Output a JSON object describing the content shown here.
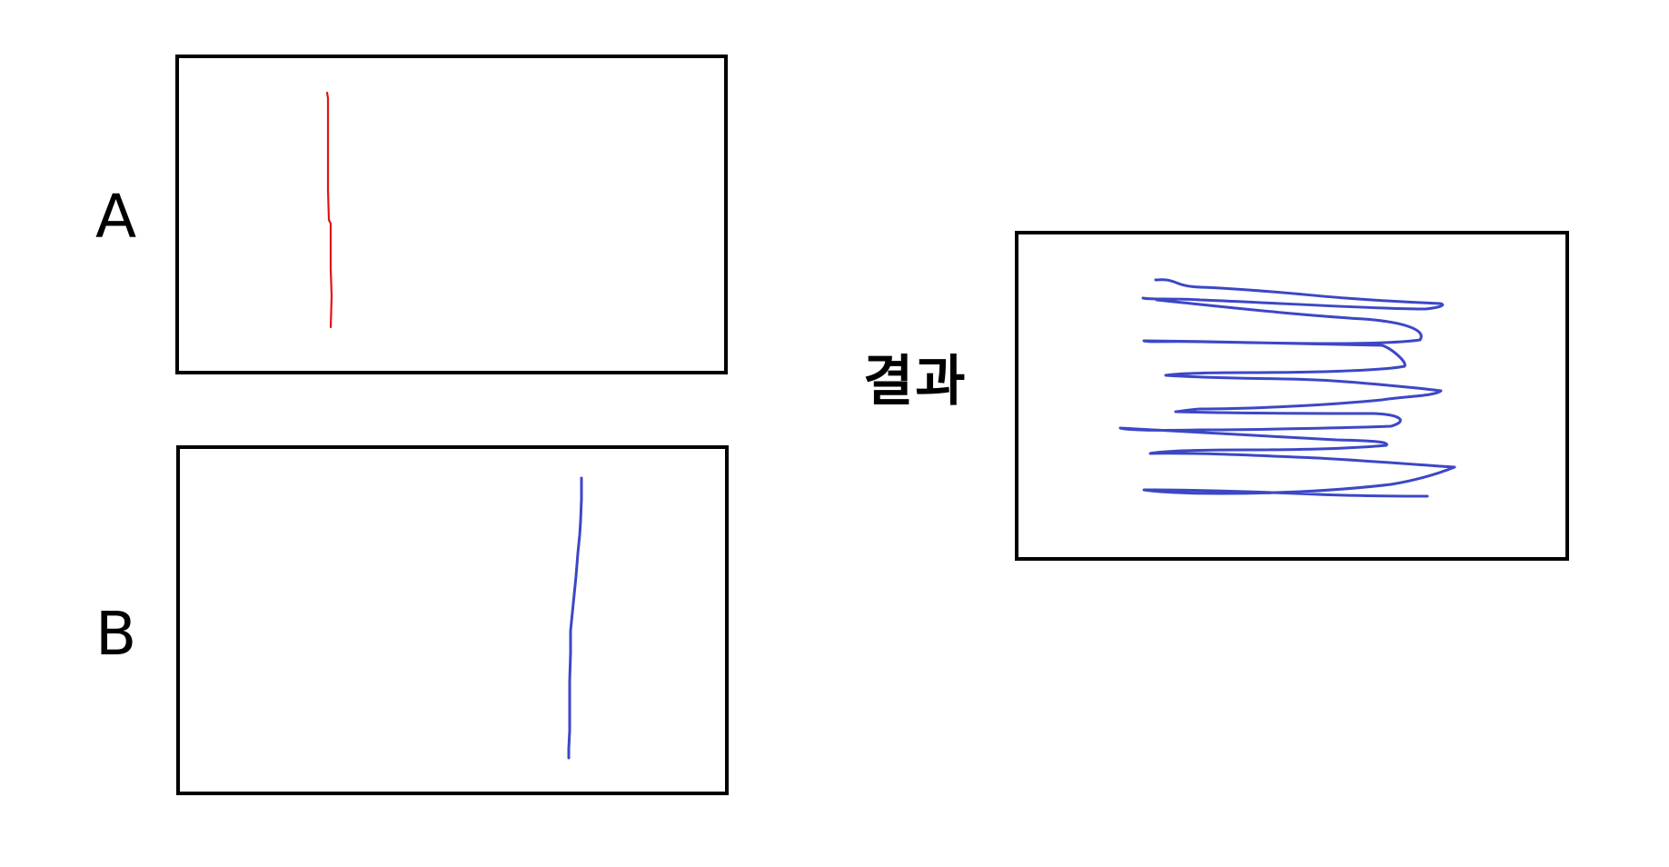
{
  "labels": {
    "a": "A",
    "b": "B",
    "result": "결과"
  },
  "colors": {
    "stroke_a": "#e0131a",
    "stroke_b": "#3c47c6",
    "stroke_result": "#3c47c6",
    "border": "#000000",
    "background": "#ffffff"
  }
}
